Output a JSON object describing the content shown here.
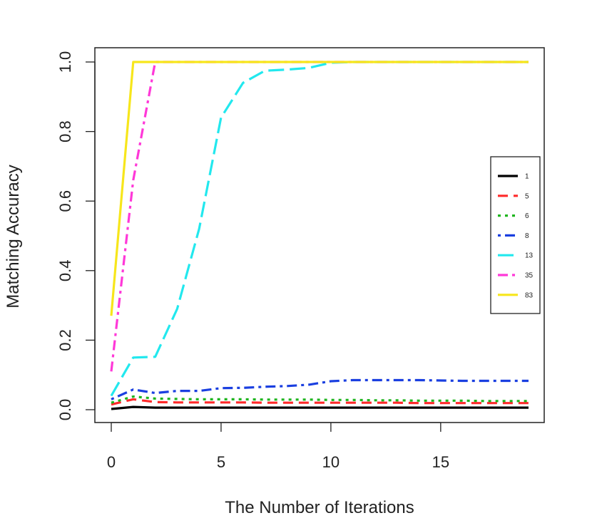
{
  "chart_data": {
    "type": "line",
    "xlabel": "The Number of Iterations",
    "ylabel": "Matching Accuracy",
    "xlim": [
      0,
      19
    ],
    "ylim": [
      0,
      1
    ],
    "x_ticks": [
      "0",
      "5",
      "10",
      "15"
    ],
    "y_ticks": [
      "0.0",
      "0.2",
      "0.4",
      "0.6",
      "0.8",
      "1.0"
    ],
    "grid": false,
    "legend_position": "right",
    "x": [
      0,
      1,
      2,
      3,
      4,
      5,
      6,
      7,
      8,
      9,
      10,
      11,
      12,
      13,
      14,
      15,
      16,
      17,
      18,
      19
    ],
    "series": [
      {
        "name": "1",
        "color": "#000000",
        "dash": "solid",
        "values": [
          0.002,
          0.008,
          0.006,
          0.006,
          0.006,
          0.006,
          0.006,
          0.006,
          0.006,
          0.006,
          0.006,
          0.006,
          0.006,
          0.006,
          0.006,
          0.006,
          0.006,
          0.006,
          0.006,
          0.006
        ]
      },
      {
        "name": "5",
        "color": "#ff2a2a",
        "dash": "longdash",
        "values": [
          0.015,
          0.03,
          0.022,
          0.021,
          0.021,
          0.021,
          0.021,
          0.02,
          0.02,
          0.02,
          0.02,
          0.02,
          0.02,
          0.02,
          0.019,
          0.019,
          0.019,
          0.019,
          0.019,
          0.019
        ]
      },
      {
        "name": "6",
        "color": "#1fb51f",
        "dash": "dotted",
        "values": [
          0.02,
          0.038,
          0.032,
          0.031,
          0.03,
          0.03,
          0.03,
          0.029,
          0.029,
          0.029,
          0.028,
          0.028,
          0.027,
          0.027,
          0.026,
          0.026,
          0.026,
          0.025,
          0.025,
          0.025
        ]
      },
      {
        "name": "8",
        "color": "#1a3fe0",
        "dash": "dotdash",
        "values": [
          0.03,
          0.058,
          0.048,
          0.054,
          0.054,
          0.062,
          0.063,
          0.066,
          0.068,
          0.072,
          0.082,
          0.085,
          0.085,
          0.085,
          0.085,
          0.084,
          0.083,
          0.083,
          0.083,
          0.083
        ]
      },
      {
        "name": "13",
        "color": "#22e8ee",
        "dash": "twodash",
        "values": [
          0.04,
          0.15,
          0.152,
          0.29,
          0.52,
          0.84,
          0.94,
          0.975,
          0.978,
          0.983,
          0.998,
          1.0,
          1.0,
          1.0,
          1.0,
          1.0,
          1.0,
          1.0,
          1.0,
          1.0
        ]
      },
      {
        "name": "35",
        "color": "#ff38d8",
        "dash": "dashdot",
        "values": [
          0.11,
          0.66,
          1.0,
          1.0,
          1.0,
          1.0,
          1.0,
          1.0,
          1.0,
          1.0,
          1.0,
          1.0,
          1.0,
          1.0,
          1.0,
          1.0,
          1.0,
          1.0,
          1.0,
          1.0
        ]
      },
      {
        "name": "83",
        "color": "#f7e61b",
        "dash": "solid",
        "values": [
          0.27,
          1.0,
          1.0,
          1.0,
          1.0,
          1.0,
          1.0,
          1.0,
          1.0,
          1.0,
          1.0,
          1.0,
          1.0,
          1.0,
          1.0,
          1.0,
          1.0,
          1.0,
          1.0,
          1.0
        ]
      }
    ]
  }
}
